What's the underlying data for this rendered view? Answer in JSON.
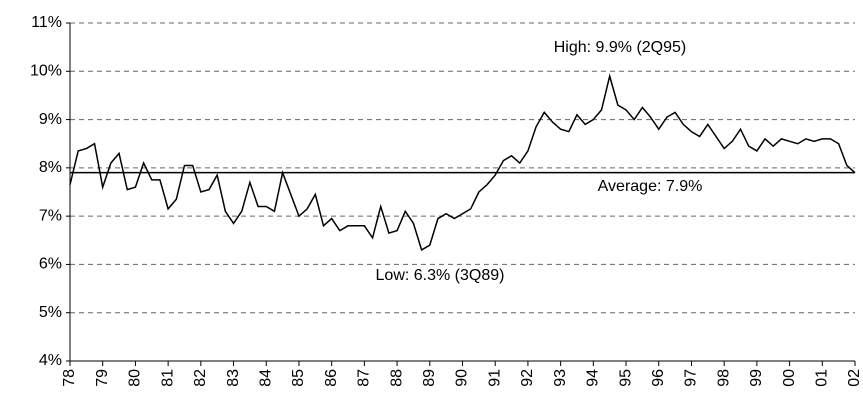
{
  "chart_data": {
    "type": "line",
    "categories": [
      "78",
      null,
      null,
      null,
      "79",
      null,
      null,
      null,
      "80",
      null,
      null,
      null,
      "81",
      null,
      null,
      null,
      "82",
      null,
      null,
      null,
      "83",
      null,
      null,
      null,
      "84",
      null,
      null,
      null,
      "85",
      null,
      null,
      null,
      "86",
      null,
      null,
      null,
      "87",
      null,
      null,
      null,
      "88",
      null,
      null,
      null,
      "89",
      null,
      null,
      null,
      "90",
      null,
      null,
      null,
      "91",
      null,
      null,
      null,
      "92",
      null,
      null,
      null,
      "93",
      null,
      null,
      null,
      "94",
      null,
      null,
      null,
      "95",
      null,
      null,
      null,
      "96",
      null,
      null,
      null,
      "97",
      null,
      null,
      null,
      "98",
      null,
      null,
      null,
      "99",
      null,
      null,
      null,
      "00",
      null,
      null,
      null,
      "01",
      null,
      null,
      null,
      "02"
    ],
    "values": [
      7.65,
      8.35,
      8.4,
      8.5,
      7.6,
      8.1,
      8.3,
      7.55,
      7.6,
      8.1,
      7.75,
      7.75,
      7.15,
      7.35,
      8.05,
      8.05,
      7.5,
      7.55,
      7.85,
      7.1,
      6.85,
      7.1,
      7.7,
      7.2,
      7.2,
      7.1,
      7.9,
      7.45,
      7.0,
      7.15,
      7.45,
      6.8,
      6.95,
      6.7,
      6.8,
      6.8,
      6.8,
      6.55,
      7.2,
      6.65,
      6.7,
      7.1,
      6.85,
      6.3,
      6.4,
      6.95,
      7.05,
      6.95,
      7.05,
      7.15,
      7.5,
      7.65,
      7.85,
      8.15,
      8.25,
      8.1,
      8.35,
      8.85,
      9.15,
      8.95,
      8.8,
      8.75,
      9.1,
      8.9,
      9.0,
      9.2,
      9.9,
      9.3,
      9.2,
      9.0,
      9.25,
      9.05,
      8.8,
      9.05,
      9.15,
      8.9,
      8.75,
      8.65,
      8.9,
      8.65,
      8.4,
      8.55,
      8.8,
      8.45,
      8.35,
      8.6,
      8.45,
      8.6,
      8.55,
      8.5,
      8.6,
      8.55,
      8.6,
      8.6,
      8.5,
      8.05,
      7.9
    ],
    "color": "#000000",
    "ylim": [
      4,
      11
    ],
    "yticks": [
      {
        "value": 4,
        "label": "4%"
      },
      {
        "value": 5,
        "label": "5%"
      },
      {
        "value": 6,
        "label": "6%"
      },
      {
        "value": 7,
        "label": "7%"
      },
      {
        "value": 8,
        "label": "8%"
      },
      {
        "value": 9,
        "label": "9%"
      },
      {
        "value": 10,
        "label": "10%"
      },
      {
        "value": 11,
        "label": "11%"
      }
    ],
    "grid": true,
    "average": {
      "value": 7.9,
      "label": "Average: 7.9%"
    },
    "annotations": [
      "High: 9.9% (2Q95)",
      "Low: 6.3% (3Q89)"
    ]
  }
}
